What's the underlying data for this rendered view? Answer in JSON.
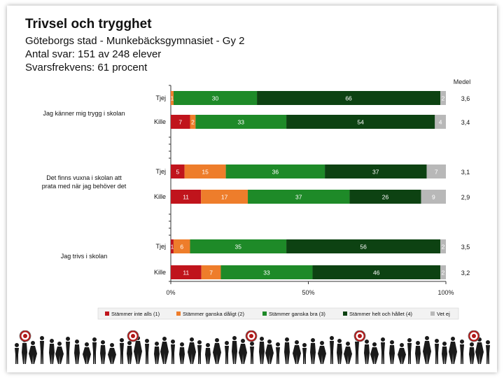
{
  "header": {
    "title": "Trivsel och trygghet",
    "subtitle": "Göteborgs stad - Munkebäcksgymnasiet - Gy 2",
    "responses": "Antal svar: 151 av 248 elever",
    "response_rate": "Svarsfrekvens: 61 procent"
  },
  "chart_data": {
    "type": "bar",
    "orientation": "horizontal-stacked-100",
    "mean_header": "Medel",
    "x_ticks": [
      "0%",
      "50%",
      "100%"
    ],
    "xlim": [
      0,
      100
    ],
    "questions": [
      {
        "label": "Jag känner mig trygg i skolan",
        "rows": [
          {
            "group": "Tjej",
            "values": [
              0,
              1,
              30,
              66,
              2
            ],
            "labels": [
              "",
              "1",
              "30",
              "66",
              "2"
            ],
            "mean": "3,6"
          },
          {
            "group": "Kille",
            "values": [
              7,
              2,
              33,
              54,
              4
            ],
            "labels": [
              "7",
              "2",
              "33",
              "54",
              "4"
            ],
            "mean": "3,4"
          }
        ]
      },
      {
        "label": "Det finns vuxna i skolan att prata med när jag behöver det",
        "rows": [
          {
            "group": "Tjej",
            "values": [
              5,
              15,
              36,
              37,
              7
            ],
            "labels": [
              "5",
              "15",
              "36",
              "37",
              "7"
            ],
            "mean": "3,1"
          },
          {
            "group": "Kille",
            "values": [
              11,
              17,
              37,
              26,
              9
            ],
            "labels": [
              "11",
              "17",
              "37",
              "26",
              "9"
            ],
            "mean": "2,9"
          }
        ]
      },
      {
        "label": "Jag trivs i skolan",
        "rows": [
          {
            "group": "Tjej",
            "values": [
              1,
              6,
              35,
              56,
              2
            ],
            "labels": [
              "1",
              "6",
              "35",
              "56",
              "2"
            ],
            "mean": "3,5"
          },
          {
            "group": "Kille",
            "values": [
              11,
              7,
              33,
              46,
              2
            ],
            "labels": [
              "11",
              "7",
              "33",
              "46",
              "2"
            ],
            "mean": "3,2"
          }
        ]
      }
    ],
    "series": [
      {
        "name": "Stämmer inte alls (1)",
        "color": "#c0141c"
      },
      {
        "name": "Stämmer ganska dåligt (2)",
        "color": "#ee7d2b"
      },
      {
        "name": "Stämmer ganska bra (3)",
        "color": "#1e8a28"
      },
      {
        "name": "Stämmer helt och hållet (4)",
        "color": "#0d4212"
      },
      {
        "name": "Vet ej",
        "color": "#b8b8b8"
      }
    ]
  }
}
